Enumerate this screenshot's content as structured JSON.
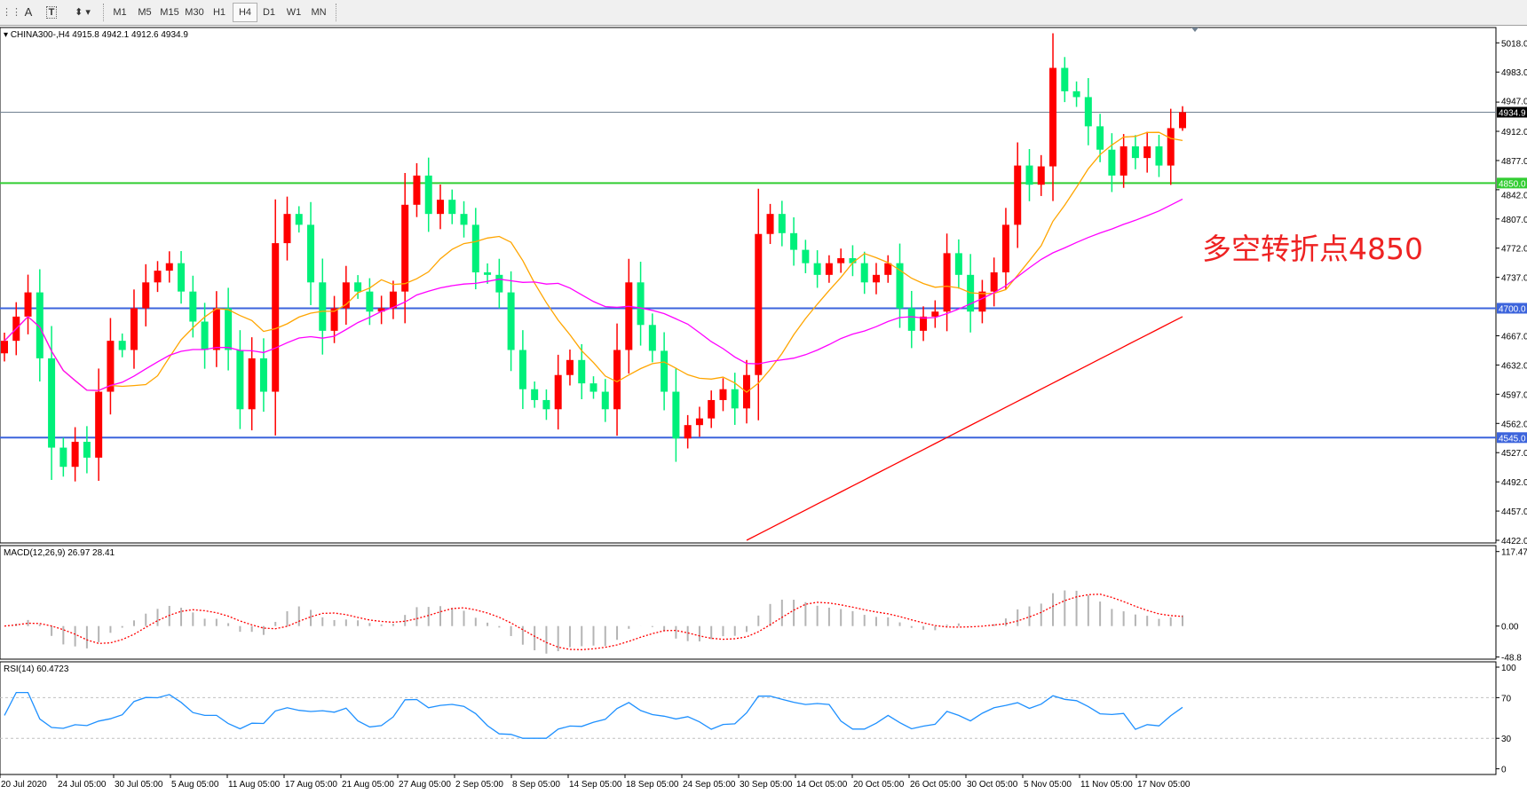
{
  "toolbar": {
    "icons": [
      "grid-icon",
      "text-icon",
      "text-label-icon",
      "arrows-icon"
    ],
    "text_icon_label": "A",
    "timeframes": [
      "M1",
      "M5",
      "M15",
      "M30",
      "H1",
      "H4",
      "D1",
      "W1",
      "MN"
    ],
    "active_timeframe": "H4"
  },
  "header": {
    "symbol_line": "CHINA300-,H4  4915.8 4942.1 4912.6 4934.9",
    "macd_label": "MACD(12,26,9) 26.97 28.41",
    "rsi_label": "RSI(14) 60.4723"
  },
  "annotation": "多空转折点4850",
  "colors": {
    "up": "#ff0000",
    "down": "#00f07a",
    "ma_fast": "#ffa500",
    "ma_mid": "#ff00ff",
    "ma_long": "#ff0000",
    "support": "#3c64dc",
    "pivot": "#32cd32",
    "bid": "#708090"
  },
  "chart_data": [
    {
      "type": "candlestick",
      "symbol": "CHINA300-",
      "timeframe": "H4",
      "ylim": [
        4422.0,
        5018.0
      ],
      "y_ticks": [
        "5018.0",
        "4983.0",
        "4947.0",
        "4912.0",
        "4877.0",
        "4842.0",
        "4807.0",
        "4772.0",
        "4737.0",
        "4667.0",
        "4632.0",
        "4597.0",
        "4562.0",
        "4527.0",
        "4492.0",
        "4457.0",
        "4422.0"
      ],
      "x_ticks": [
        "20 Jul 2020",
        "24 Jul 05:00",
        "30 Jul 05:00",
        "5 Aug 05:00",
        "11 Aug 05:00",
        "17 Aug 05:00",
        "21 Aug 05:00",
        "27 Aug 05:00",
        "2 Sep 05:00",
        "8 Sep 05:00",
        "14 Sep 05:00",
        "18 Sep 05:00",
        "24 Sep 05:00",
        "30 Sep 05:00",
        "14 Oct 05:00",
        "20 Oct 05:00",
        "26 Oct 05:00",
        "30 Oct 05:00",
        "5 Nov 05:00",
        "11 Nov 05:00",
        "17 Nov 05:00"
      ],
      "closes": [
        4661,
        4690,
        4719,
        4640,
        4533,
        4510,
        4540,
        4521,
        4600,
        4661,
        4650,
        4700,
        4731,
        4745,
        4754,
        4720,
        4684,
        4650,
        4700,
        4650,
        4579,
        4640,
        4600,
        4778,
        4813,
        4800,
        4731,
        4673,
        4700,
        4731,
        4720,
        4696,
        4700,
        4720,
        4824,
        4859,
        4813,
        4830,
        4813,
        4800,
        4743,
        4740,
        4719,
        4650,
        4603,
        4590,
        4579,
        4620,
        4638,
        4610,
        4600,
        4579,
        4650,
        4731,
        4680,
        4649,
        4600,
        4544,
        4560,
        4568,
        4590,
        4603,
        4580,
        4620,
        4789,
        4813,
        4790,
        4770,
        4754,
        4740,
        4754,
        4760,
        4754,
        4731,
        4740,
        4754,
        4700,
        4673,
        4690,
        4696,
        4766,
        4740,
        4696,
        4720,
        4743,
        4800,
        4871,
        4848,
        4870,
        4988,
        4960,
        4953,
        4918,
        4890,
        4859,
        4894,
        4880,
        4894,
        4871,
        4915.8,
        4934.9
      ],
      "last_bar": {
        "open": 4915.8,
        "high": 4942.1,
        "low": 4912.6,
        "close": 4934.9
      },
      "horizontal_lines": [
        {
          "price": 4934.9,
          "label": "4934.9",
          "role": "bid"
        },
        {
          "price": 4850.0,
          "label": "4850.0",
          "role": "pivot"
        },
        {
          "price": 4700.0,
          "label": "4700.0",
          "role": "support"
        },
        {
          "price": 4545.0,
          "label": "4545.0",
          "role": "support"
        }
      ],
      "ma_long": {
        "start_index": 63,
        "start_value": 4422,
        "end_value": 4690
      }
    },
    {
      "type": "bar+line",
      "name": "MACD(12,26,9)",
      "ylim": [
        -48.8,
        117.47
      ],
      "y_ticks": [
        "117.47",
        "0.00",
        "-48.8"
      ],
      "main": 26.97,
      "signal": 28.41
    },
    {
      "type": "line",
      "name": "RSI(14)",
      "ylim": [
        0,
        100
      ],
      "y_ticks": [
        "100",
        "70",
        "30",
        "0"
      ],
      "levels": [
        70,
        30
      ],
      "last": 60.4723
    }
  ]
}
